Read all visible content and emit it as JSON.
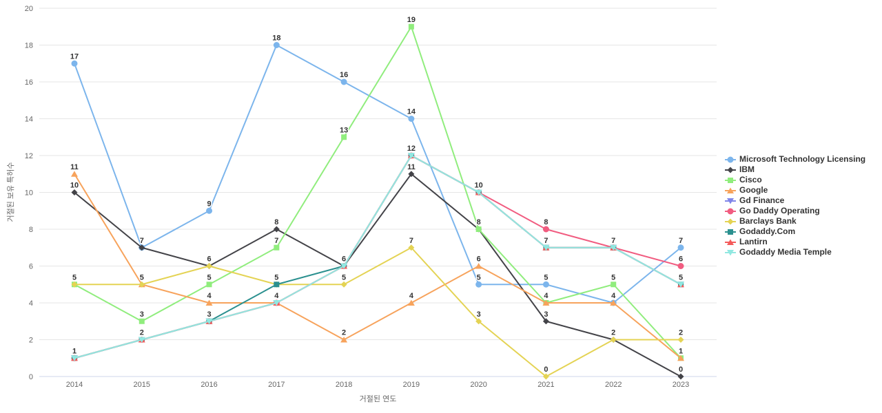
{
  "chart_data": {
    "type": "line",
    "title": "",
    "xlabel": "거절된 연도",
    "ylabel": "거절된 보유 특허수",
    "categories": [
      "2014",
      "2015",
      "2016",
      "2017",
      "2018",
      "2019",
      "2020",
      "2021",
      "2022",
      "2023"
    ],
    "ylim": [
      0,
      20
    ],
    "yticks": [
      0,
      2,
      4,
      6,
      8,
      10,
      12,
      14,
      16,
      18,
      20
    ],
    "grid": true,
    "legend_position": "right",
    "series": [
      {
        "name": "Microsoft Technology Licensing",
        "color": "#7cb5ec",
        "marker": "circle",
        "values": [
          17,
          7,
          9,
          18,
          16,
          14,
          5,
          5,
          4,
          7
        ]
      },
      {
        "name": "IBM",
        "color": "#434348",
        "marker": "diamond",
        "values": [
          10,
          7,
          6,
          8,
          6,
          11,
          8,
          3,
          2,
          0
        ]
      },
      {
        "name": "Cisco",
        "color": "#90ed7d",
        "marker": "square",
        "values": [
          5,
          3,
          5,
          7,
          13,
          19,
          8,
          4,
          5,
          1
        ]
      },
      {
        "name": "Google",
        "color": "#f7a35c",
        "marker": "triangle",
        "values": [
          11,
          5,
          4,
          4,
          2,
          4,
          6,
          4,
          4,
          1
        ]
      },
      {
        "name": "Gd Finance",
        "color": "#8085e9",
        "marker": "triangle-down",
        "values": [
          1,
          2,
          3,
          4,
          6,
          12,
          10,
          7,
          7,
          5
        ]
      },
      {
        "name": "Go Daddy Operating",
        "color": "#f15c80",
        "marker": "circle",
        "values": [
          1,
          2,
          3,
          4,
          6,
          12,
          10,
          8,
          7,
          6
        ]
      },
      {
        "name": "Barclays Bank",
        "color": "#e4d354",
        "marker": "diamond",
        "values": [
          5,
          5,
          6,
          5,
          5,
          7,
          3,
          0,
          2,
          2
        ]
      },
      {
        "name": "Godaddy.Com",
        "color": "#2b908f",
        "marker": "square",
        "values": [
          1,
          2,
          3,
          5,
          6,
          12,
          10,
          7,
          7,
          5
        ]
      },
      {
        "name": "Lantirn",
        "color": "#f45b5b",
        "marker": "triangle",
        "values": [
          1,
          2,
          3,
          4,
          6,
          12,
          10,
          7,
          7,
          5
        ]
      },
      {
        "name": "Godaddy Media Temple",
        "color": "#91e8e1",
        "marker": "triangle-down",
        "values": [
          1,
          2,
          3,
          4,
          6,
          12,
          10,
          7,
          7,
          5
        ]
      }
    ],
    "colors": {
      "grid": "#e6e6e6",
      "axis_line": "#ccd6eb",
      "tick_label": "#666666",
      "axis_title": "#666666",
      "data_label": "#333333",
      "legend_text": "#333333",
      "background": "#ffffff"
    }
  }
}
